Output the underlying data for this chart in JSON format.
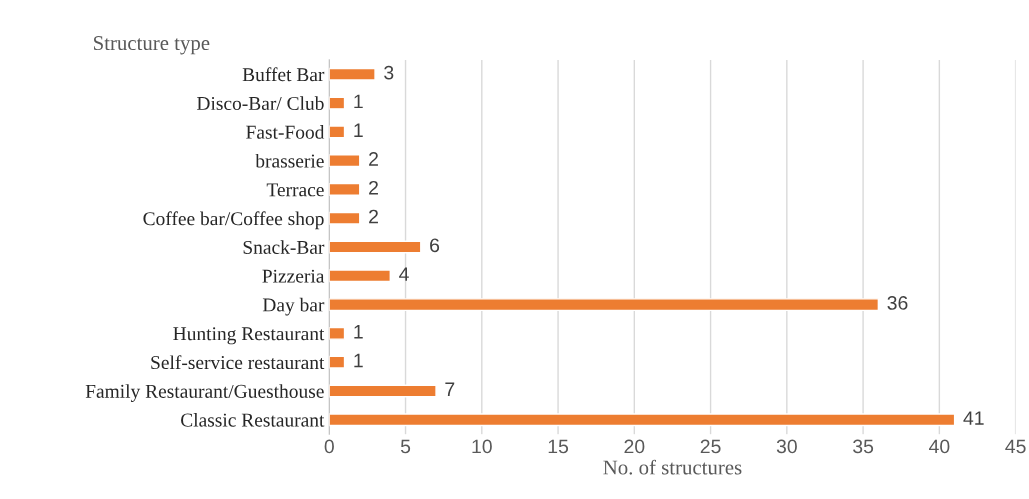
{
  "chart_data": {
    "type": "bar",
    "orientation": "horizontal",
    "title": "Structure type",
    "xlabel": "No. of structures",
    "categories": [
      "Buffet Bar",
      "Disco-Bar/ Club",
      "Fast-Food",
      "brasserie",
      "Terrace",
      "Coffee bar/Coffee shop",
      "Snack-Bar",
      "Pizzeria",
      "Day bar",
      "Hunting Restaurant",
      "Self-service restaurant",
      "Family Restaurant/Guesthouse",
      "Classic Restaurant"
    ],
    "values": [
      3,
      1,
      1,
      2,
      2,
      2,
      6,
      4,
      36,
      1,
      1,
      7,
      41
    ],
    "color": "#ed7d31",
    "xlim": [
      0,
      45
    ],
    "xticks": [
      0,
      5,
      10,
      15,
      20,
      25,
      30,
      35,
      40,
      45
    ],
    "grid": "x",
    "data_labels": true,
    "legend": false
  }
}
